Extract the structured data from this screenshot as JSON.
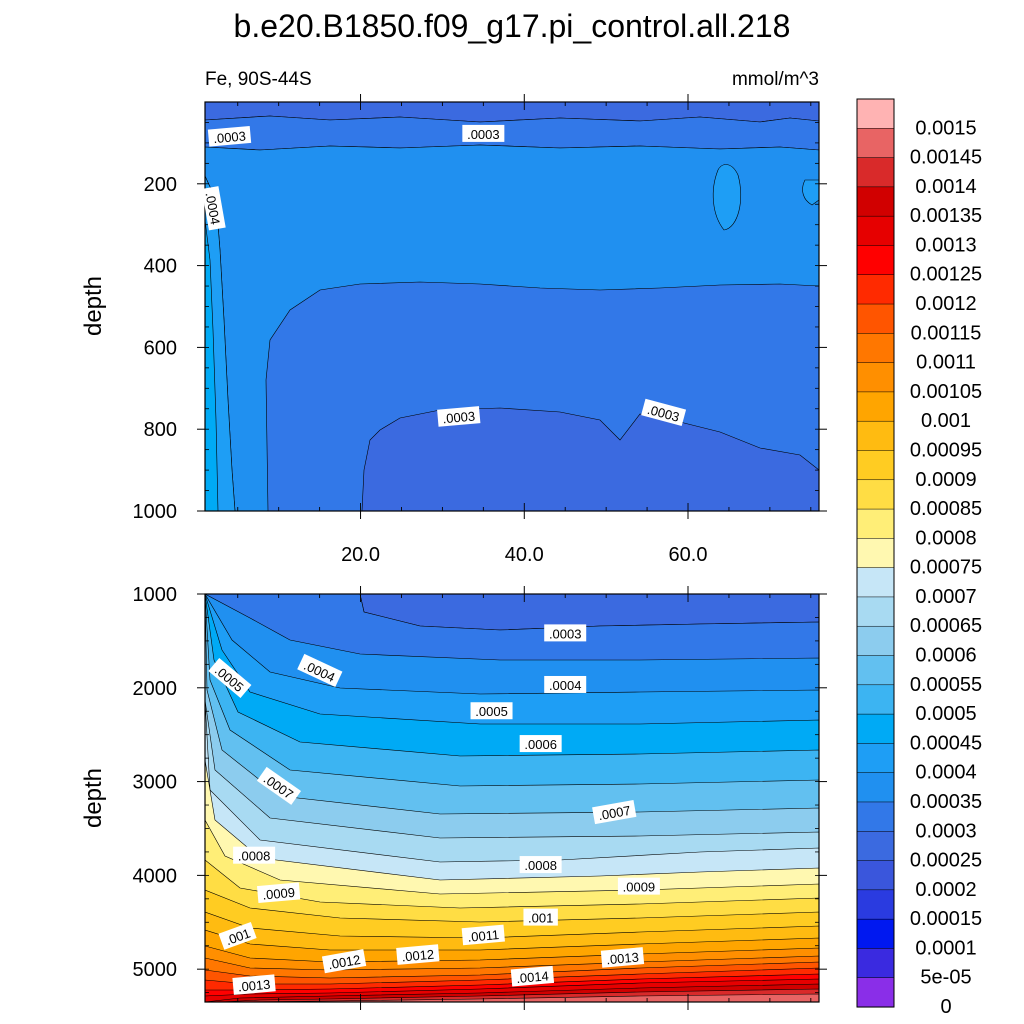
{
  "chart_data": {
    "type": "heatmap",
    "title": "b.e20.B1850.f09_g17.pi_control.all.218",
    "variable_label": "Fe, 90S-44S",
    "units_label": "mmol/m^3",
    "colors": {
      "contour_line": "#000000",
      "frame": "#000000",
      "background": "#ffffff"
    },
    "x_axis": {
      "range": [
        1,
        76
      ],
      "ticks": [
        20,
        40,
        60
      ],
      "tick_labels": [
        "20.0",
        "40.0",
        "60.0"
      ]
    },
    "panels": [
      {
        "name": "upper",
        "ylabel": "depth",
        "ylim": [
          0,
          1000
        ],
        "y_ticks": [
          200,
          400,
          600,
          800,
          1000
        ],
        "y_tick_labels": [
          "200",
          "400",
          "600",
          "800",
          "1000"
        ],
        "contour_labels": [
          {
            "text": ".0003",
            "x": 4,
            "y": 85
          },
          {
            "text": ".0003",
            "x": 35,
            "y": 78
          },
          {
            "text": ".0004",
            "x": 2,
            "y": 260
          },
          {
            "text": ".0003",
            "x": 32,
            "y": 770
          },
          {
            "text": ".0003",
            "x": 57,
            "y": 760
          }
        ]
      },
      {
        "name": "lower",
        "ylabel": "depth",
        "ylim": [
          1000,
          5350
        ],
        "y_ticks": [
          1000,
          2000,
          3000,
          4000,
          5000
        ],
        "y_tick_labels": [
          "1000",
          "2000",
          "3000",
          "4000",
          "5000"
        ],
        "contour_labels": [
          {
            "text": ".0003",
            "x": 45,
            "y": 1420
          },
          {
            "text": ".0004",
            "x": 15,
            "y": 1820
          },
          {
            "text": ".0005",
            "x": 4,
            "y": 1900
          },
          {
            "text": ".0004",
            "x": 45,
            "y": 1970
          },
          {
            "text": ".0005",
            "x": 36,
            "y": 2250
          },
          {
            "text": ".0006",
            "x": 42,
            "y": 2600
          },
          {
            "text": ".0007",
            "x": 10,
            "y": 3050
          },
          {
            "text": ".0007",
            "x": 51,
            "y": 3330
          },
          {
            "text": ".0008",
            "x": 7,
            "y": 3790
          },
          {
            "text": ".0008",
            "x": 42,
            "y": 3890
          },
          {
            "text": ".0009",
            "x": 10,
            "y": 4190
          },
          {
            "text": ".0009",
            "x": 54,
            "y": 4120
          },
          {
            "text": ".001",
            "x": 5,
            "y": 4650
          },
          {
            "text": ".001",
            "x": 42,
            "y": 4450
          },
          {
            "text": ".0011",
            "x": 35,
            "y": 4640
          },
          {
            "text": ".0012",
            "x": 18,
            "y": 4920
          },
          {
            "text": ".0012",
            "x": 27,
            "y": 4850
          },
          {
            "text": ".0013",
            "x": 52,
            "y": 4880
          },
          {
            "text": ".0013",
            "x": 7,
            "y": 5170
          },
          {
            "text": ".0014",
            "x": 41,
            "y": 5080
          }
        ]
      }
    ],
    "colorbar": {
      "labels": [
        "0.0015",
        "0.00145",
        "0.0014",
        "0.00135",
        "0.0013",
        "0.00125",
        "0.0012",
        "0.00115",
        "0.0011",
        "0.00105",
        "0.001",
        "0.00095",
        "0.0009",
        "0.00085",
        "0.0008",
        "0.00075",
        "0.0007",
        "0.00065",
        "0.0006",
        "0.00055",
        "0.0005",
        "0.00045",
        "0.0004",
        "0.00035",
        "0.0003",
        "0.00025",
        "0.0002",
        "0.00015",
        "0.0001",
        "5e-05",
        "0"
      ],
      "colors": [
        "#ffb3b3",
        "#e86464",
        "#d92a2a",
        "#d10000",
        "#e60000",
        "#ff0000",
        "#ff2a00",
        "#ff5500",
        "#ff7700",
        "#ff8f00",
        "#ffa500",
        "#ffbb11",
        "#ffcc22",
        "#ffdd44",
        "#ffee77",
        "#fff8b0",
        "#c6e6f7",
        "#a8daf2",
        "#8cccee",
        "#62c0f0",
        "#3cb4f2",
        "#00aaf5",
        "#1e9ef5",
        "#2090f0",
        "#3278e8",
        "#3b6ae0",
        "#3a56dc",
        "#2a3be0",
        "#0018f0",
        "#3a2ae0",
        "#8a2ee8"
      ]
    }
  }
}
